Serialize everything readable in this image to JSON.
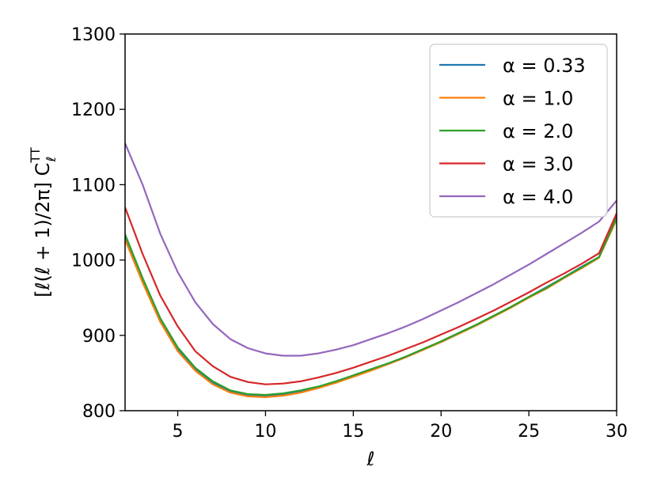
{
  "chart_data": {
    "type": "line",
    "xlabel": "ℓ",
    "ylabel": "[ℓ(ℓ + 1)/2π] C",
    "ylabel_sub": "ℓ",
    "ylabel_sup": "TT",
    "xlim": [
      2,
      30
    ],
    "ylim": [
      800,
      1300
    ],
    "xticks": [
      5,
      10,
      15,
      20,
      25,
      30
    ],
    "yticks": [
      800,
      900,
      1000,
      1100,
      1200,
      1300
    ],
    "grid": false,
    "legend_position": "top-right",
    "x": [
      2,
      3,
      4,
      5,
      6,
      7,
      8,
      9,
      10,
      11,
      12,
      13,
      14,
      15,
      16,
      17,
      18,
      19,
      20,
      21,
      22,
      23,
      24,
      25,
      26,
      27,
      28,
      29,
      30
    ],
    "series": [
      {
        "name": "α = 0.33",
        "color": "#1f77b4",
        "values": [
          1030,
          973,
          920,
          881,
          855,
          837,
          826,
          821,
          820,
          822,
          826,
          831,
          838,
          846,
          854,
          862,
          871,
          881,
          892,
          903,
          914,
          926,
          938,
          951,
          964,
          977,
          991,
          1004,
          1057
        ]
      },
      {
        "name": "α = 1.0",
        "color": "#ff7f0e",
        "values": [
          1027,
          970,
          918,
          879,
          853,
          835,
          824,
          819,
          818,
          820,
          824,
          830,
          837,
          845,
          853,
          862,
          871,
          881,
          891,
          902,
          913,
          925,
          937,
          950,
          962,
          976,
          989,
          1003,
          1054
        ]
      },
      {
        "name": "α = 2.0",
        "color": "#2ca02c",
        "values": [
          1034,
          976,
          923,
          884,
          857,
          839,
          827,
          822,
          821,
          823,
          827,
          832,
          839,
          847,
          855,
          863,
          872,
          882,
          892,
          903,
          914,
          926,
          938,
          951,
          963,
          977,
          990,
          1004,
          1056
        ]
      },
      {
        "name": "α = 3.0",
        "color": "#d62728",
        "values": [
          1070,
          1008,
          953,
          912,
          879,
          859,
          845,
          838,
          835,
          836,
          839,
          844,
          850,
          857,
          865,
          873,
          882,
          891,
          901,
          911,
          922,
          933,
          945,
          957,
          970,
          982,
          995,
          1009,
          1062
        ]
      },
      {
        "name": "α = 4.0",
        "color": "#9467bd",
        "values": [
          1155,
          1100,
          1035,
          984,
          944,
          915,
          895,
          883,
          876,
          873,
          873,
          876,
          881,
          887,
          895,
          903,
          912,
          922,
          933,
          944,
          956,
          968,
          981,
          994,
          1008,
          1022,
          1036,
          1051,
          1079
        ]
      }
    ]
  }
}
